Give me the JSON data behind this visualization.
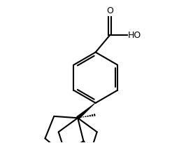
{
  "background_color": "#ffffff",
  "line_color": "#000000",
  "line_width": 1.5,
  "figure_width": 2.56,
  "figure_height": 2.04,
  "dpi": 100
}
